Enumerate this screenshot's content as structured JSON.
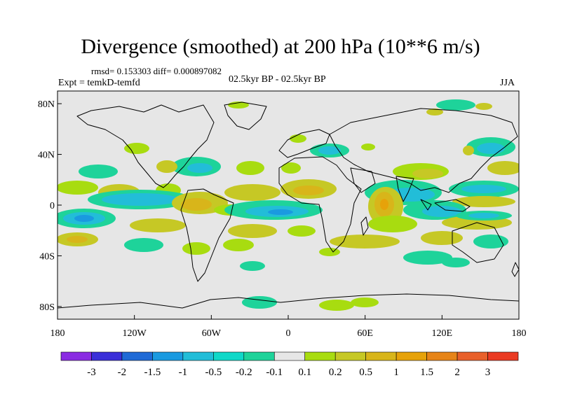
{
  "title": "Divergence (smoothed) at 200 hPa (10**6 m/s)",
  "stats": "rmsd= 0.153303 diff= 0.000897082",
  "experiment": "Expt = temkD-temfd",
  "period": "02.5kyr BP - 02.5kyr BP",
  "season": "JJA",
  "map": {
    "projection": "cylindrical equidistant",
    "lon_range": [
      -180,
      180
    ],
    "lat_range": [
      -90,
      90
    ],
    "lat_ticks": [
      {
        "value": 80,
        "label": "80N"
      },
      {
        "value": 40,
        "label": "40N"
      },
      {
        "value": 0,
        "label": "0"
      },
      {
        "value": -40,
        "label": "40S"
      },
      {
        "value": -80,
        "label": "80S"
      }
    ],
    "lon_ticks": [
      {
        "value": -180,
        "label": "180"
      },
      {
        "value": -120,
        "label": "120W"
      },
      {
        "value": -60,
        "label": "60W"
      },
      {
        "value": 0,
        "label": "0"
      },
      {
        "value": 60,
        "label": "60E"
      },
      {
        "value": 120,
        "label": "120E"
      },
      {
        "value": 180,
        "label": "180"
      }
    ],
    "background_color": "#e6e6e6"
  },
  "colorbar": {
    "colors": [
      "#8a2be2",
      "#3a2fd8",
      "#1f6ad6",
      "#1a9ae0",
      "#22bdd8",
      "#10d8c8",
      "#1ed39a",
      "#e6e6e6",
      "#a8dc10",
      "#c6c825",
      "#d8b51a",
      "#e6a20a",
      "#e68418",
      "#e8602a",
      "#ea3a22"
    ],
    "labels": [
      "-3",
      "-2",
      "-1.5",
      "-1",
      "-0.5",
      "-0.2",
      "-0.1",
      "0.1",
      "0.2",
      "0.5",
      "1",
      "1.5",
      "2",
      "3"
    ]
  }
}
